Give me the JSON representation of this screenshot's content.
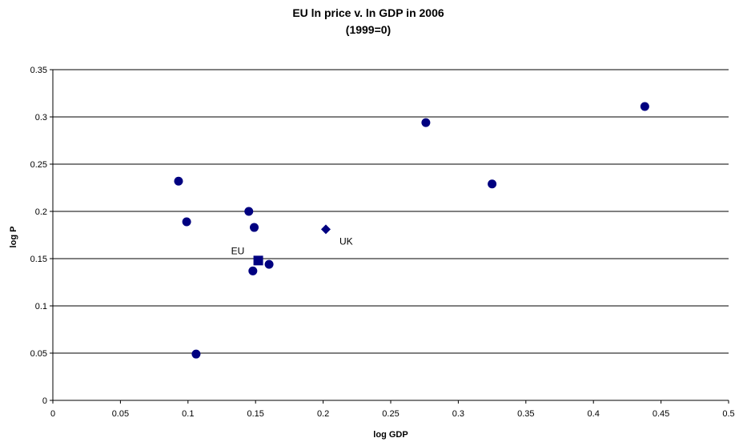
{
  "chart_data": {
    "type": "scatter",
    "title": "EU ln price v. ln GDP in 2006",
    "subtitle": "(1999=0)",
    "xlabel": "log GDP",
    "ylabel": "log P",
    "xlim": [
      0,
      0.5
    ],
    "ylim": [
      0,
      0.35
    ],
    "xticks": [
      "0",
      "0.05",
      "0.1",
      "0.15",
      "0.2",
      "0.25",
      "0.3",
      "0.35",
      "0.4",
      "0.45",
      "0.5"
    ],
    "yticks": [
      "0",
      "0.05",
      "0.1",
      "0.15",
      "0.2",
      "0.25",
      "0.3",
      "0.35"
    ],
    "grid": "horizontal",
    "legend": "none",
    "marker_color": "#000080",
    "points": [
      {
        "x": 0.093,
        "y": 0.232,
        "marker": "circle"
      },
      {
        "x": 0.099,
        "y": 0.189,
        "marker": "circle"
      },
      {
        "x": 0.106,
        "y": 0.049,
        "marker": "circle"
      },
      {
        "x": 0.145,
        "y": 0.2,
        "marker": "circle"
      },
      {
        "x": 0.149,
        "y": 0.183,
        "marker": "circle"
      },
      {
        "x": 0.148,
        "y": 0.137,
        "marker": "circle"
      },
      {
        "x": 0.16,
        "y": 0.144,
        "marker": "circle"
      },
      {
        "x": 0.276,
        "y": 0.294,
        "marker": "circle"
      },
      {
        "x": 0.325,
        "y": 0.229,
        "marker": "circle"
      },
      {
        "x": 0.438,
        "y": 0.311,
        "marker": "circle"
      },
      {
        "x": 0.152,
        "y": 0.148,
        "marker": "square",
        "label": "EU"
      },
      {
        "x": 0.202,
        "y": 0.181,
        "marker": "diamond",
        "label": "UK"
      }
    ]
  }
}
